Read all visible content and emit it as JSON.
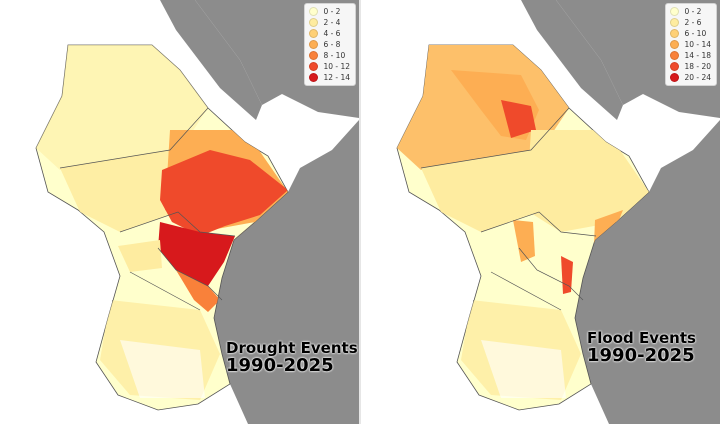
{
  "maps": [
    {
      "title_line1": "Drought Events",
      "title_line2": "1990-2025",
      "legend": [
        {
          "label": "0 - 2",
          "color": "#ffffcc"
        },
        {
          "label": "2 - 4",
          "color": "#feeca0"
        },
        {
          "label": "4 - 6",
          "color": "#fed076"
        },
        {
          "label": "6 - 8",
          "color": "#fdae53"
        },
        {
          "label": "8 - 10",
          "color": "#f9813a"
        },
        {
          "label": "10 - 12",
          "color": "#ef4a2b"
        },
        {
          "label": "12 - 14",
          "color": "#d7191c"
        }
      ]
    },
    {
      "title_line1": "Flood Events",
      "title_line2": "1990-2025",
      "legend": [
        {
          "label": "0 - 2",
          "color": "#ffffcc"
        },
        {
          "label": "2 - 6",
          "color": "#feeca0"
        },
        {
          "label": "6 - 10",
          "color": "#fed076"
        },
        {
          "label": "10 - 14",
          "color": "#fdae53"
        },
        {
          "label": "14 - 18",
          "color": "#f9813a"
        },
        {
          "label": "18 - 20",
          "color": "#ef4a2b"
        },
        {
          "label": "20 - 24",
          "color": "#d7191c"
        }
      ]
    }
  ]
}
